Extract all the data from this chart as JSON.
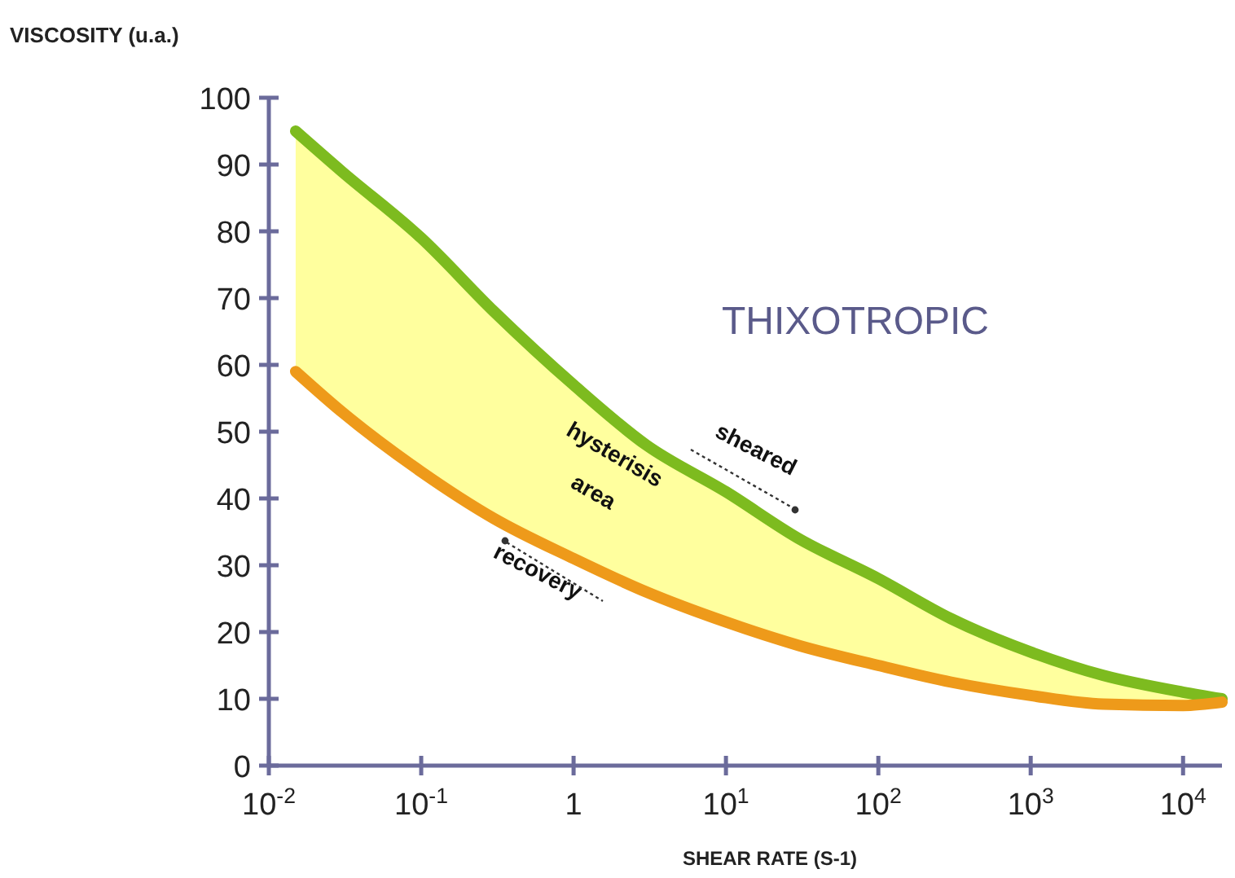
{
  "chart_data": {
    "type": "line",
    "xlabel": "SHEAR RATE (S-1)",
    "ylabel": "VISCOSITY (u.a.)",
    "log": "x",
    "grid": false,
    "marker": "none",
    "line_style": "solid",
    "xlim": [
      0.01,
      18000
    ],
    "xticks": [
      {
        "value": 0.01,
        "label": "10$^{-2}$"
      },
      {
        "value": 0.1,
        "label": "10$^{-1}$"
      },
      1,
      {
        "value": 10,
        "label": "10$^{1}$"
      },
      {
        "value": 100,
        "label": "10$^{2}$"
      },
      {
        "value": 1000,
        "label": "10$^{3}$"
      },
      {
        "value": 10000,
        "label": "10$^{4}$"
      }
    ],
    "ylim": [
      0,
      100
    ],
    "yticks": [
      0,
      10,
      20,
      30,
      40,
      50,
      60,
      70,
      80,
      90,
      100
    ],
    "x": [
      0.015,
      0.03,
      0.1,
      0.3,
      1,
      3,
      10,
      30,
      100,
      300,
      1000,
      3000,
      10000,
      18000
    ],
    "series": [
      {
        "color": "#7dbb1f",
        "values": [
          95,
          89,
          79,
          68,
          57,
          48,
          41,
          34,
          28,
          22,
          17,
          13.5,
          11,
          10
        ],
        "lower": [
          59,
          53,
          44,
          37,
          31,
          26,
          21.5,
          18,
          15,
          12.5,
          10.5,
          9.2,
          9,
          9.5
        ],
        "upper": [
          95,
          89,
          79,
          68,
          57,
          48,
          41,
          34,
          28,
          22,
          17,
          13.5,
          11,
          10
        ]
      },
      {
        "color": "#ee9a1a",
        "values": [
          59,
          53,
          44,
          37,
          31,
          26,
          21.5,
          18,
          15,
          12.5,
          10.5,
          9.2,
          9,
          9.5
        ]
      }
    ],
    "annotations": [
      "THIXOTROPIC",
      "hysterisis",
      "area",
      "sheared",
      "recovery"
    ]
  }
}
